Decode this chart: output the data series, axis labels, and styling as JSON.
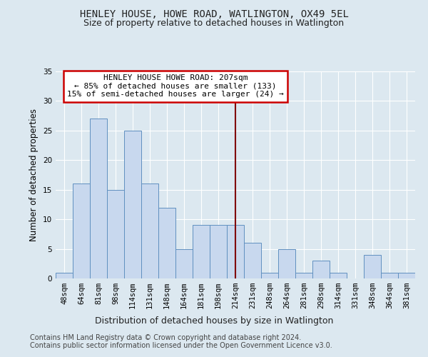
{
  "title": "HENLEY HOUSE, HOWE ROAD, WATLINGTON, OX49 5EL",
  "subtitle": "Size of property relative to detached houses in Watlington",
  "xlabel": "Distribution of detached houses by size in Watlington",
  "ylabel": "Number of detached properties",
  "categories": [
    "48sqm",
    "64sqm",
    "81sqm",
    "98sqm",
    "114sqm",
    "131sqm",
    "148sqm",
    "164sqm",
    "181sqm",
    "198sqm",
    "214sqm",
    "231sqm",
    "248sqm",
    "264sqm",
    "281sqm",
    "298sqm",
    "314sqm",
    "331sqm",
    "348sqm",
    "364sqm",
    "381sqm"
  ],
  "values": [
    1,
    16,
    27,
    15,
    25,
    16,
    12,
    5,
    9,
    9,
    9,
    6,
    1,
    5,
    1,
    3,
    1,
    0,
    4,
    1,
    1
  ],
  "bar_color": "#c8d8ee",
  "bar_edge_color": "#6090c0",
  "vline_x_index": 10.0,
  "vline_color": "#800000",
  "annotation_text": "HENLEY HOUSE HOWE ROAD: 207sqm\n← 85% of detached houses are smaller (133)\n15% of semi-detached houses are larger (24) →",
  "annotation_box_color": "#ffffff",
  "annotation_box_edge_color": "#cc0000",
  "ylim": [
    0,
    35
  ],
  "yticks": [
    0,
    5,
    10,
    15,
    20,
    25,
    30,
    35
  ],
  "bg_color": "#dce8f0",
  "plot_bg_color": "#dce8f0",
  "grid_color": "#ffffff",
  "footer_line1": "Contains HM Land Registry data © Crown copyright and database right 2024.",
  "footer_line2": "Contains public sector information licensed under the Open Government Licence v3.0.",
  "title_fontsize": 10,
  "subtitle_fontsize": 9,
  "xlabel_fontsize": 9,
  "ylabel_fontsize": 8.5,
  "tick_fontsize": 7.5,
  "annot_fontsize": 8,
  "footer_fontsize": 7
}
